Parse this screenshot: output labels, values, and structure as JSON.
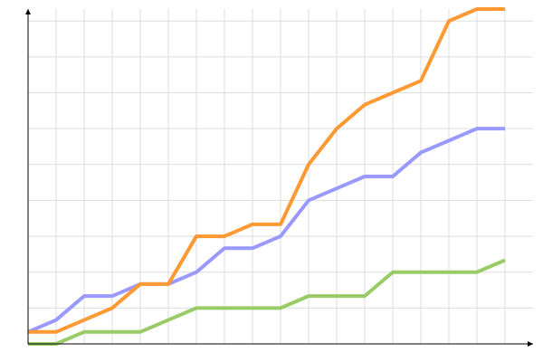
{
  "chart_data": {
    "type": "line",
    "title": "",
    "xlabel": "",
    "ylabel": "",
    "xlim": [
      0,
      18
    ],
    "ylim": [
      0,
      28
    ],
    "grid": true,
    "x_grid_step": 1,
    "y_grid_step": 3,
    "x": [
      0,
      1,
      2,
      3,
      4,
      5,
      6,
      7,
      8,
      9,
      10,
      11,
      12,
      13,
      14,
      15,
      16,
      17
    ],
    "series": [
      {
        "color": "#9999ff",
        "values": [
          1,
          2,
          4,
          4,
          5,
          5,
          6,
          8,
          8,
          9,
          12,
          13,
          14,
          14,
          16,
          17,
          18,
          18
        ]
      },
      {
        "color": "#ff9933",
        "values": [
          1,
          1,
          2,
          3,
          5,
          5,
          9,
          9,
          10,
          10,
          15,
          18,
          20,
          21,
          22,
          27,
          28,
          28
        ]
      },
      {
        "color": "#99cc66",
        "values": [
          0,
          0,
          1,
          1,
          1,
          2,
          3,
          3,
          3,
          3,
          4,
          4,
          4,
          6,
          6,
          6,
          6,
          7
        ]
      }
    ],
    "colors": {
      "grid": "#dddddd",
      "axis": "#000000"
    }
  }
}
